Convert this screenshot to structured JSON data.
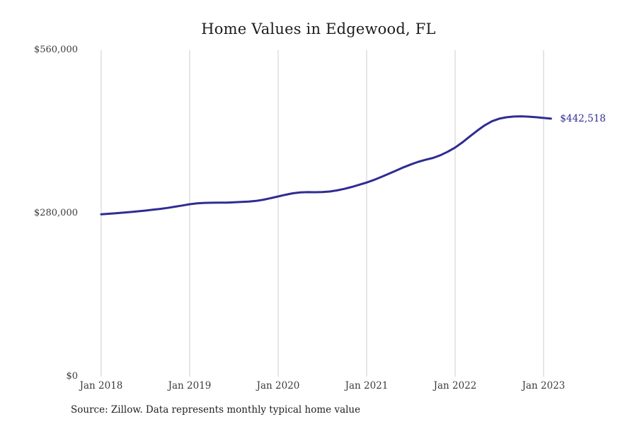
{
  "page": {
    "title": "Home Values in Edgewood, FL",
    "source_note": "Source: Zillow. Data represents monthly typical home value"
  },
  "chart_data": {
    "type": "line",
    "title": "Home Values in Edgewood, FL",
    "xlabel": "",
    "ylabel": "",
    "ylim": [
      0,
      560000
    ],
    "grid": "vertical-yearly-only",
    "legend": "none",
    "end_label": "$442,518",
    "latest_value": 442518,
    "y_ticks": [
      {
        "label": "$0",
        "value": 0
      },
      {
        "label": "$280,000",
        "value": 280000
      },
      {
        "label": "$560,000",
        "value": 560000
      }
    ],
    "x_ticks": [
      {
        "label": "Jan 2018",
        "month_index": 0
      },
      {
        "label": "Jan 2019",
        "month_index": 12
      },
      {
        "label": "Jan 2020",
        "month_index": 24
      },
      {
        "label": "Jan 2021",
        "month_index": 36
      },
      {
        "label": "Jan 2022",
        "month_index": 48
      },
      {
        "label": "Jan 2023",
        "month_index": 60
      }
    ],
    "x": [
      "2018-01",
      "2018-02",
      "2018-03",
      "2018-04",
      "2018-05",
      "2018-06",
      "2018-07",
      "2018-08",
      "2018-09",
      "2018-10",
      "2018-11",
      "2018-12",
      "2019-01",
      "2019-02",
      "2019-03",
      "2019-04",
      "2019-05",
      "2019-06",
      "2019-07",
      "2019-08",
      "2019-09",
      "2019-10",
      "2019-11",
      "2019-12",
      "2020-01",
      "2020-02",
      "2020-03",
      "2020-04",
      "2020-05",
      "2020-06",
      "2020-07",
      "2020-08",
      "2020-09",
      "2020-10",
      "2020-11",
      "2020-12",
      "2021-01",
      "2021-02",
      "2021-03",
      "2021-04",
      "2021-05",
      "2021-06",
      "2021-07",
      "2021-08",
      "2021-09",
      "2021-10",
      "2021-11",
      "2021-12",
      "2022-01",
      "2022-02",
      "2022-03",
      "2022-04",
      "2022-05",
      "2022-06",
      "2022-07",
      "2022-08",
      "2022-09",
      "2022-10",
      "2022-11",
      "2022-12",
      "2023-01",
      "2023-02"
    ],
    "series": [
      {
        "name": "Monthly typical home value",
        "color": "#2f2c93",
        "values": [
          278500,
          279400,
          280300,
          281300,
          282400,
          283600,
          284900,
          286300,
          287800,
          289500,
          291500,
          293600,
          295800,
          297200,
          298000,
          298300,
          298400,
          298600,
          299000,
          299600,
          300400,
          301500,
          303500,
          306200,
          309100,
          312000,
          314500,
          316000,
          316500,
          316400,
          316600,
          317600,
          319500,
          322200,
          325500,
          329200,
          333000,
          337500,
          342500,
          348000,
          353500,
          359000,
          364000,
          368500,
          372000,
          375200,
          379800,
          385800,
          393000,
          402000,
          412000,
          422000,
          431000,
          438000,
          442500,
          445000,
          446200,
          446500,
          446000,
          445000,
          443800,
          442518
        ]
      }
    ],
    "colors": {
      "line": "#2f2c93",
      "grid": "#cccccc",
      "axis_text": "#3b3b3b",
      "title_text": "#1d1d1d"
    }
  }
}
